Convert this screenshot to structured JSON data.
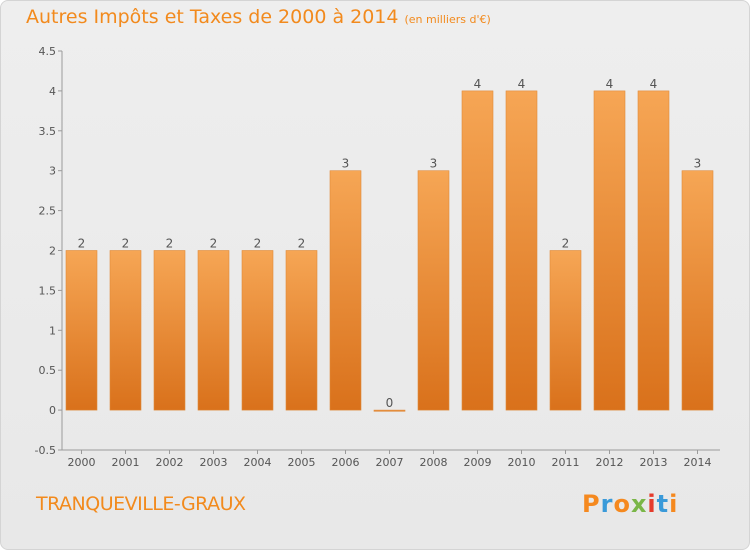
{
  "header": {
    "title": "Autres Impôts et Taxes de 2000 à 2014",
    "unit": "(en milliers d'€)"
  },
  "footer": {
    "commune": "TRANQUEVILLE-GRAUX",
    "logo": "Proxiti"
  },
  "colors": {
    "bar_top": "#f6a655",
    "bar_bottom": "#d9711b",
    "title": "#f28a1d",
    "logo_letters": [
      "#f5891f",
      "#3a9ad9",
      "#f5891f",
      "#7ab648",
      "#e53b2c",
      "#3a9ad9",
      "#f5891f"
    ]
  },
  "chart_data": {
    "type": "bar",
    "title": "Autres Impôts et Taxes de 2000 à 2014",
    "subtitle": "(en milliers d'€)",
    "categories": [
      "2000",
      "2001",
      "2002",
      "2003",
      "2004",
      "2005",
      "2006",
      "2007",
      "2008",
      "2009",
      "2010",
      "2011",
      "2012",
      "2013",
      "2014"
    ],
    "values": [
      2,
      2,
      2,
      2,
      2,
      2,
      3,
      0,
      3,
      4,
      4,
      2,
      4,
      4,
      3
    ],
    "ylim": [
      -0.5,
      4.5
    ],
    "yticks": [
      "-0.5",
      "0",
      "0.5",
      "1",
      "1.5",
      "2",
      "2.5",
      "3",
      "3.5",
      "4",
      "4.5"
    ],
    "ytick_values": [
      -0.5,
      0,
      0.5,
      1,
      1.5,
      2,
      2.5,
      3,
      3.5,
      4,
      4.5
    ],
    "grid": false,
    "data_labels": true
  }
}
